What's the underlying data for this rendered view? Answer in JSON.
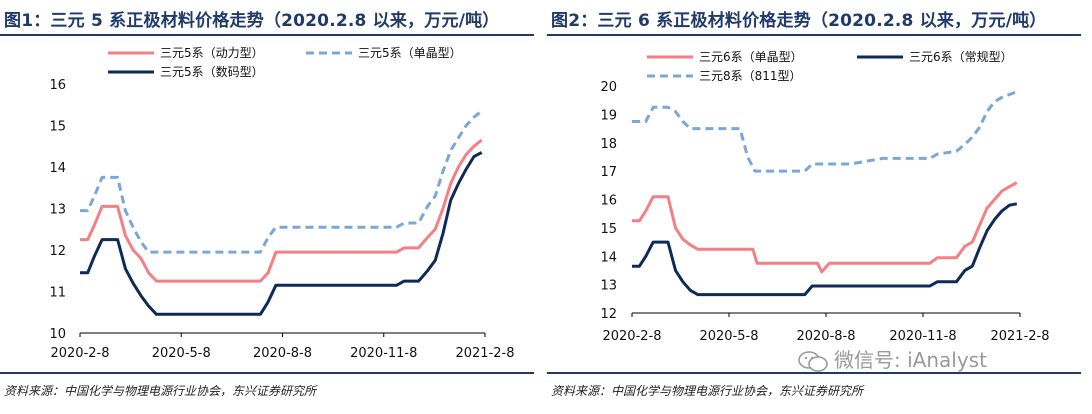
{
  "figure1": {
    "title": "图1：三元 5 系正极材料价格走势（2020.2.8 以来，万元/吨）",
    "source": "资料来源：中国化学与物理电源行业协会，东兴证券研究所"
  },
  "figure2": {
    "title": "图2：三元 6 系正极材料价格走势（2020.2.8 以来，万元/吨）",
    "source": "资料来源：中国化学与物理电源行业协会，东兴证券研究所"
  },
  "watermark": {
    "text": "微信号: iAnalyst"
  },
  "chart_data": [
    {
      "type": "line",
      "x_ticks": [
        "2020-2-8",
        "2020-5-8",
        "2020-8-8",
        "2020-11-8",
        "2021-2-8"
      ],
      "xlim": [
        "2020-02-08",
        "2021-02-08"
      ],
      "ylim": [
        10,
        16
      ],
      "y_ticks": [
        10,
        11,
        12,
        13,
        14,
        15,
        16
      ],
      "legend_position": "top",
      "grid": false,
      "series": [
        {
          "name": "三元5系（动力型）",
          "color": "#f47f84",
          "style": "solid",
          "points": [
            [
              "2020-02-08",
              12.25
            ],
            [
              "2020-02-15",
              12.25
            ],
            [
              "2020-02-21",
              12.6
            ],
            [
              "2020-02-28",
              13.05
            ],
            [
              "2020-03-05",
              13.05
            ],
            [
              "2020-03-13",
              13.05
            ],
            [
              "2020-03-20",
              12.35
            ],
            [
              "2020-03-27",
              12.0
            ],
            [
              "2020-04-03",
              11.8
            ],
            [
              "2020-04-10",
              11.45
            ],
            [
              "2020-04-17",
              11.25
            ],
            [
              "2020-05-01",
              11.25
            ],
            [
              "2020-06-01",
              11.25
            ],
            [
              "2020-07-01",
              11.25
            ],
            [
              "2020-07-20",
              11.25
            ],
            [
              "2020-07-27",
              11.45
            ],
            [
              "2020-08-03",
              11.95
            ],
            [
              "2020-09-01",
              11.95
            ],
            [
              "2020-10-01",
              11.95
            ],
            [
              "2020-11-01",
              11.95
            ],
            [
              "2020-11-20",
              11.95
            ],
            [
              "2020-11-27",
              12.05
            ],
            [
              "2020-12-10",
              12.05
            ],
            [
              "2020-12-18",
              12.3
            ],
            [
              "2020-12-25",
              12.5
            ],
            [
              "2021-01-01",
              13.0
            ],
            [
              "2021-01-08",
              13.6
            ],
            [
              "2021-01-15",
              14.0
            ],
            [
              "2021-01-22",
              14.3
            ],
            [
              "2021-01-29",
              14.5
            ],
            [
              "2021-02-05",
              14.65
            ]
          ]
        },
        {
          "name": "三元5系（单晶型）",
          "color": "#7aa7d8",
          "style": "dashed",
          "points": [
            [
              "2020-02-08",
              12.95
            ],
            [
              "2020-02-15",
              12.95
            ],
            [
              "2020-02-21",
              13.3
            ],
            [
              "2020-02-28",
              13.75
            ],
            [
              "2020-03-13",
              13.75
            ],
            [
              "2020-03-20",
              12.95
            ],
            [
              "2020-03-27",
              12.55
            ],
            [
              "2020-04-03",
              12.2
            ],
            [
              "2020-04-10",
              11.95
            ],
            [
              "2020-05-01",
              11.95
            ],
            [
              "2020-06-01",
              11.95
            ],
            [
              "2020-07-20",
              11.95
            ],
            [
              "2020-07-27",
              12.3
            ],
            [
              "2020-08-03",
              12.55
            ],
            [
              "2020-09-01",
              12.55
            ],
            [
              "2020-10-01",
              12.55
            ],
            [
              "2020-11-01",
              12.55
            ],
            [
              "2020-11-20",
              12.55
            ],
            [
              "2020-11-27",
              12.65
            ],
            [
              "2020-12-10",
              12.65
            ],
            [
              "2020-12-18",
              13.05
            ],
            [
              "2020-12-25",
              13.3
            ],
            [
              "2021-01-01",
              13.9
            ],
            [
              "2021-01-08",
              14.4
            ],
            [
              "2021-01-15",
              14.7
            ],
            [
              "2021-01-22",
              15.0
            ],
            [
              "2021-01-29",
              15.2
            ],
            [
              "2021-02-05",
              15.35
            ]
          ]
        },
        {
          "name": "三元5系（数码型）",
          "color": "#0e2a56",
          "style": "solid",
          "points": [
            [
              "2020-02-08",
              11.45
            ],
            [
              "2020-02-15",
              11.45
            ],
            [
              "2020-02-21",
              11.85
            ],
            [
              "2020-02-28",
              12.25
            ],
            [
              "2020-03-13",
              12.25
            ],
            [
              "2020-03-20",
              11.55
            ],
            [
              "2020-03-27",
              11.2
            ],
            [
              "2020-04-03",
              10.9
            ],
            [
              "2020-04-10",
              10.65
            ],
            [
              "2020-04-17",
              10.45
            ],
            [
              "2020-05-01",
              10.45
            ],
            [
              "2020-06-01",
              10.45
            ],
            [
              "2020-07-20",
              10.45
            ],
            [
              "2020-07-27",
              10.75
            ],
            [
              "2020-08-03",
              11.15
            ],
            [
              "2020-09-01",
              11.15
            ],
            [
              "2020-10-01",
              11.15
            ],
            [
              "2020-11-01",
              11.15
            ],
            [
              "2020-11-20",
              11.15
            ],
            [
              "2020-11-27",
              11.25
            ],
            [
              "2020-12-10",
              11.25
            ],
            [
              "2020-12-18",
              11.5
            ],
            [
              "2020-12-25",
              11.75
            ],
            [
              "2021-01-01",
              12.4
            ],
            [
              "2021-01-08",
              13.2
            ],
            [
              "2021-01-15",
              13.6
            ],
            [
              "2021-01-22",
              13.95
            ],
            [
              "2021-01-29",
              14.25
            ],
            [
              "2021-02-05",
              14.35
            ]
          ]
        }
      ]
    },
    {
      "type": "line",
      "x_ticks": [
        "2020-2-8",
        "2020-5-8",
        "2020-8-8",
        "2020-11-8",
        "2021-2-8"
      ],
      "xlim": [
        "2020-02-08",
        "2021-02-08"
      ],
      "ylim": [
        12,
        20
      ],
      "y_ticks": [
        12,
        13,
        14,
        15,
        16,
        17,
        18,
        19,
        20
      ],
      "legend_position": "top",
      "grid": false,
      "series": [
        {
          "name": "三元6系（单晶型）",
          "color": "#f47f84",
          "style": "solid",
          "points": [
            [
              "2020-02-08",
              15.25
            ],
            [
              "2020-02-15",
              15.25
            ],
            [
              "2020-02-21",
              15.6
            ],
            [
              "2020-02-28",
              16.1
            ],
            [
              "2020-03-13",
              16.1
            ],
            [
              "2020-03-20",
              15.0
            ],
            [
              "2020-03-27",
              14.6
            ],
            [
              "2020-04-03",
              14.4
            ],
            [
              "2020-04-10",
              14.25
            ],
            [
              "2020-05-01",
              14.25
            ],
            [
              "2020-06-01",
              14.25
            ],
            [
              "2020-06-05",
              13.75
            ],
            [
              "2020-07-01",
              13.75
            ],
            [
              "2020-08-01",
              13.75
            ],
            [
              "2020-08-05",
              13.45
            ],
            [
              "2020-08-12",
              13.75
            ],
            [
              "2020-09-01",
              13.75
            ],
            [
              "2020-10-01",
              13.75
            ],
            [
              "2020-11-01",
              13.75
            ],
            [
              "2020-11-15",
              13.75
            ],
            [
              "2020-11-22",
              13.95
            ],
            [
              "2020-12-10",
              13.95
            ],
            [
              "2020-12-18",
              14.35
            ],
            [
              "2020-12-25",
              14.5
            ],
            [
              "2021-01-01",
              15.1
            ],
            [
              "2021-01-08",
              15.7
            ],
            [
              "2021-01-15",
              16.0
            ],
            [
              "2021-01-22",
              16.3
            ],
            [
              "2021-01-29",
              16.45
            ],
            [
              "2021-02-05",
              16.6
            ]
          ]
        },
        {
          "name": "三元6系（常规型）",
          "color": "#0e2a56",
          "style": "solid",
          "points": [
            [
              "2020-02-08",
              13.65
            ],
            [
              "2020-02-15",
              13.65
            ],
            [
              "2020-02-21",
              14.0
            ],
            [
              "2020-02-28",
              14.5
            ],
            [
              "2020-03-13",
              14.5
            ],
            [
              "2020-03-20",
              13.5
            ],
            [
              "2020-03-27",
              13.1
            ],
            [
              "2020-04-03",
              12.8
            ],
            [
              "2020-04-10",
              12.65
            ],
            [
              "2020-05-01",
              12.65
            ],
            [
              "2020-06-01",
              12.65
            ],
            [
              "2020-07-01",
              12.65
            ],
            [
              "2020-07-20",
              12.65
            ],
            [
              "2020-07-27",
              12.95
            ],
            [
              "2020-08-10",
              12.95
            ],
            [
              "2020-09-01",
              12.95
            ],
            [
              "2020-10-01",
              12.95
            ],
            [
              "2020-11-01",
              12.95
            ],
            [
              "2020-11-15",
              12.95
            ],
            [
              "2020-11-22",
              13.1
            ],
            [
              "2020-12-10",
              13.1
            ],
            [
              "2020-12-18",
              13.5
            ],
            [
              "2020-12-25",
              13.65
            ],
            [
              "2021-01-01",
              14.3
            ],
            [
              "2021-01-08",
              14.9
            ],
            [
              "2021-01-15",
              15.3
            ],
            [
              "2021-01-22",
              15.6
            ],
            [
              "2021-01-29",
              15.8
            ],
            [
              "2021-02-05",
              15.85
            ]
          ]
        },
        {
          "name": "三元8系（811型）",
          "color": "#7aa7d8",
          "style": "dashed",
          "points": [
            [
              "2020-02-08",
              18.75
            ],
            [
              "2020-02-21",
              18.75
            ],
            [
              "2020-02-28",
              19.25
            ],
            [
              "2020-03-13",
              19.25
            ],
            [
              "2020-03-20",
              19.1
            ],
            [
              "2020-03-27",
              18.75
            ],
            [
              "2020-04-03",
              18.5
            ],
            [
              "2020-05-01",
              18.5
            ],
            [
              "2020-05-20",
              18.5
            ],
            [
              "2020-05-27",
              17.5
            ],
            [
              "2020-06-03",
              17.0
            ],
            [
              "2020-07-01",
              17.0
            ],
            [
              "2020-07-20",
              17.0
            ],
            [
              "2020-07-27",
              17.25
            ],
            [
              "2020-08-10",
              17.25
            ],
            [
              "2020-09-01",
              17.25
            ],
            [
              "2020-10-01",
              17.45
            ],
            [
              "2020-11-01",
              17.45
            ],
            [
              "2020-11-15",
              17.45
            ],
            [
              "2020-11-22",
              17.6
            ],
            [
              "2020-12-10",
              17.7
            ],
            [
              "2020-12-18",
              17.95
            ],
            [
              "2020-12-25",
              18.2
            ],
            [
              "2021-01-01",
              18.55
            ],
            [
              "2021-01-08",
              19.1
            ],
            [
              "2021-01-15",
              19.45
            ],
            [
              "2021-01-22",
              19.6
            ],
            [
              "2021-01-29",
              19.7
            ],
            [
              "2021-02-05",
              19.8
            ]
          ]
        }
      ]
    }
  ]
}
